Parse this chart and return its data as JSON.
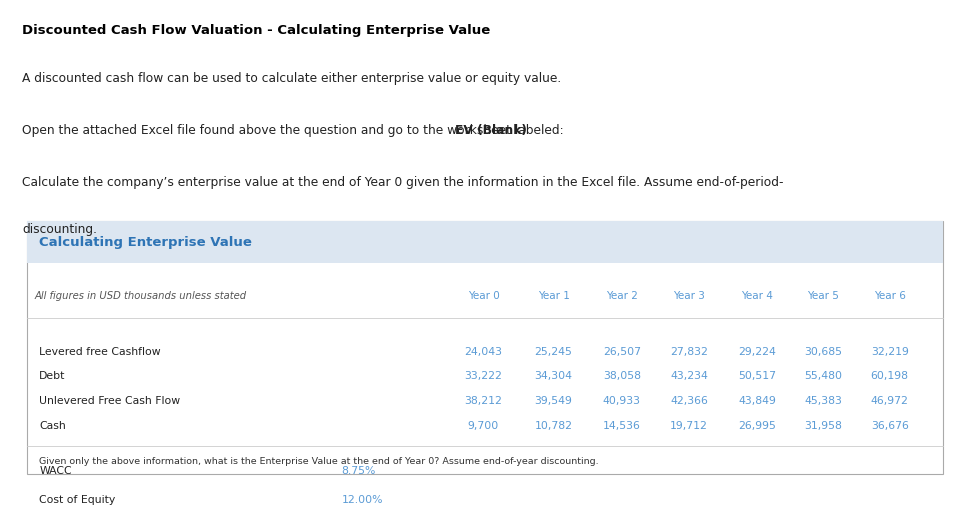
{
  "title": "Discounted Cash Flow Valuation - Calculating Enterprise Value",
  "para1": "A discounted cash flow can be used to calculate either enterprise value or equity value.",
  "para2_normal": "Open the attached Excel file found above the question and go to the worksheet labeled: ",
  "para2_bold": "EV (Blank)",
  "para3_line1": "Calculate the company’s enterprise value at the end of Year 0 given the information in the Excel file. Assume end-of-period-",
  "para3_line2": "discounting.",
  "table_title": "Calculating Enterprise Value",
  "subtitle": "All figures in USD thousands unless stated",
  "years": [
    "Year 0",
    "Year 1",
    "Year 2",
    "Year 3",
    "Year 4",
    "Year 5",
    "Year 6"
  ],
  "rows": [
    {
      "label": "Levered free Cashflow",
      "values": [
        "24,043",
        "25,245",
        "26,507",
        "27,832",
        "29,224",
        "30,685",
        "32,219"
      ]
    },
    {
      "label": "Debt",
      "values": [
        "33,222",
        "34,304",
        "38,058",
        "43,234",
        "50,517",
        "55,480",
        "60,198"
      ]
    },
    {
      "label": "Unlevered Free Cash Flow",
      "values": [
        "38,212",
        "39,549",
        "40,933",
        "42,366",
        "43,849",
        "45,383",
        "46,972"
      ]
    },
    {
      "label": "Cash",
      "values": [
        "9,700",
        "10,782",
        "14,536",
        "19,712",
        "26,995",
        "31,958",
        "36,676"
      ]
    }
  ],
  "wacc_label": "WACC",
  "wacc_value": "8.75%",
  "coe_label": "Cost of Equity",
  "coe_value": "12.00%",
  "footer": "Given only the above information, what is the Enterprise Value at the end of Year 0? Assume end-of-year discounting.",
  "bg_color": "#ffffff",
  "table_bg": "#ffffff",
  "header_bg": "#dce6f1",
  "header_title_color": "#2E74B5",
  "data_color": "#5B9BD5",
  "label_color": "#222222",
  "subtitle_color": "#555555",
  "border_color": "#aaaaaa",
  "title_color": "#000000",
  "body_text_color": "#222222",
  "wacc_value_color": "#5B9BD5",
  "footer_color": "#333333",
  "separator_color": "#cccccc"
}
